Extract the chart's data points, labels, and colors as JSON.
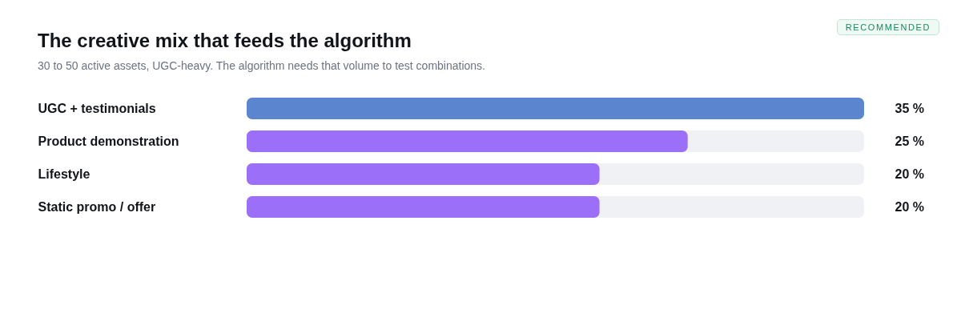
{
  "chart_data": {
    "type": "bar",
    "orientation": "horizontal",
    "title": "The creative mix that feeds the algorithm",
    "subtitle": "30 to 50 active assets, UGC-heavy. The algorithm needs that volume to test combinations.",
    "categories": [
      "UGC + testimonials",
      "Product demonstration",
      "Lifestyle",
      "Static promo / offer"
    ],
    "values": [
      35,
      25,
      20,
      20
    ],
    "colors": [
      "#5b86cf",
      "#9b6ff8",
      "#9b6ff8",
      "#9b6ff8"
    ],
    "value_labels": [
      "35 %",
      "25 %",
      "20 %",
      "20 %"
    ],
    "xlim": [
      0,
      35
    ],
    "tick_labels": "y",
    "annotations": [
      "RECOMMENDED"
    ]
  }
}
